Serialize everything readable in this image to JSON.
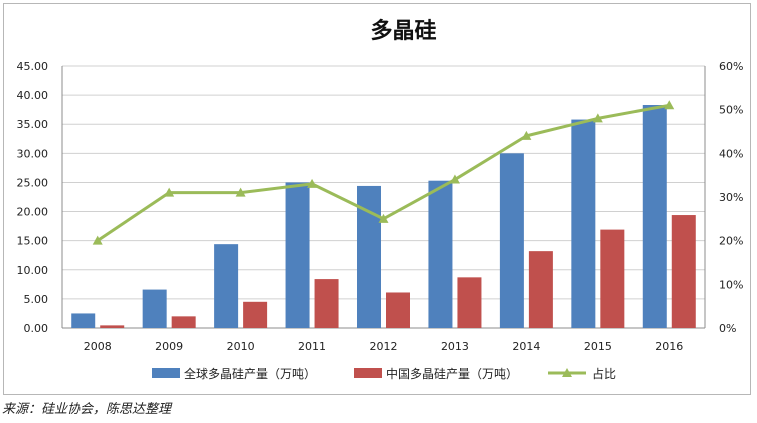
{
  "chart_data": {
    "type": "bar",
    "title": "多晶硅",
    "categories": [
      "2008",
      "2009",
      "2010",
      "2011",
      "2012",
      "2013",
      "2014",
      "2015",
      "2016"
    ],
    "series": [
      {
        "name": "全球多晶硅产量（万吨）",
        "type": "bar",
        "axis": "left",
        "color": "#4f81bd",
        "values": [
          2.5,
          6.6,
          14.4,
          25.0,
          24.4,
          25.3,
          30.0,
          35.8,
          38.3
        ]
      },
      {
        "name": "中国多晶硅产量（万吨）",
        "type": "bar",
        "axis": "left",
        "color": "#c0504d",
        "values": [
          0.45,
          2.0,
          4.5,
          8.4,
          6.1,
          8.7,
          13.2,
          16.9,
          19.4
        ]
      },
      {
        "name": "占比",
        "type": "line",
        "axis": "right",
        "color": "#9bbb59",
        "marker": "triangle",
        "values": [
          0.2,
          0.31,
          0.31,
          0.33,
          0.25,
          0.34,
          0.44,
          0.48,
          0.51
        ]
      }
    ],
    "y_left": {
      "ylim": [
        0,
        45
      ],
      "ticks": [
        "0.00",
        "5.00",
        "10.00",
        "15.00",
        "20.00",
        "25.00",
        "30.00",
        "35.00",
        "40.00",
        "45.00"
      ]
    },
    "y_right": {
      "ylim": [
        0,
        0.6
      ],
      "ticks": [
        "0%",
        "10%",
        "20%",
        "30%",
        "40%",
        "50%",
        "60%"
      ]
    },
    "grid": true,
    "legend_position": "bottom"
  },
  "source_note": "来源：硅业协会，陈思达整理"
}
